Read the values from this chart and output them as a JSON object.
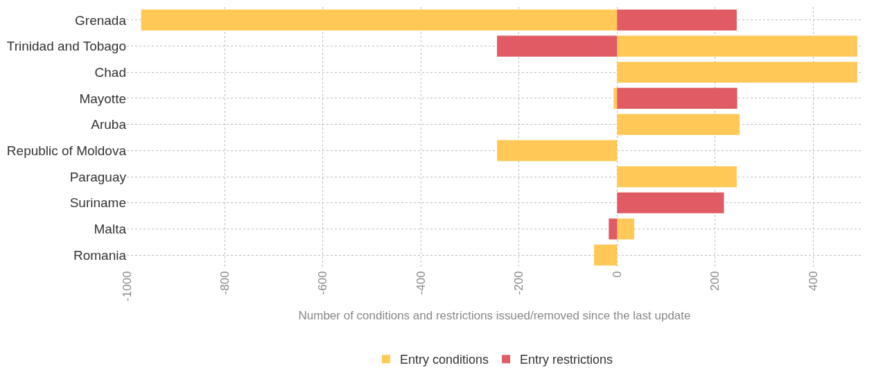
{
  "chart_data": {
    "type": "bar",
    "orientation": "horizontal",
    "stacked": true,
    "categories": [
      "Grenada",
      "Trinidad and Tobago",
      "Chad",
      "Mayotte",
      "Aruba",
      "Republic of Moldova",
      "Paraguay",
      "Suriname",
      "Malta",
      "Romania"
    ],
    "series": [
      {
        "name": "Entry conditions",
        "color": "#ffc857",
        "values": [
          -971,
          490,
          490,
          -7,
          250,
          -245,
          244,
          null,
          35,
          -47
        ]
      },
      {
        "name": "Entry restrictions",
        "color": "#e05b63",
        "values": [
          244,
          -245,
          null,
          245,
          null,
          null,
          null,
          218,
          -17,
          null
        ]
      }
    ],
    "xlabel": "Number of conditions and restrictions issued/removed since the last update",
    "xlim": [
      -1000,
      500
    ],
    "xticks": [
      -1000,
      -800,
      -600,
      -400,
      -200,
      0,
      200,
      400
    ],
    "grid": true,
    "legend": "bottom"
  }
}
